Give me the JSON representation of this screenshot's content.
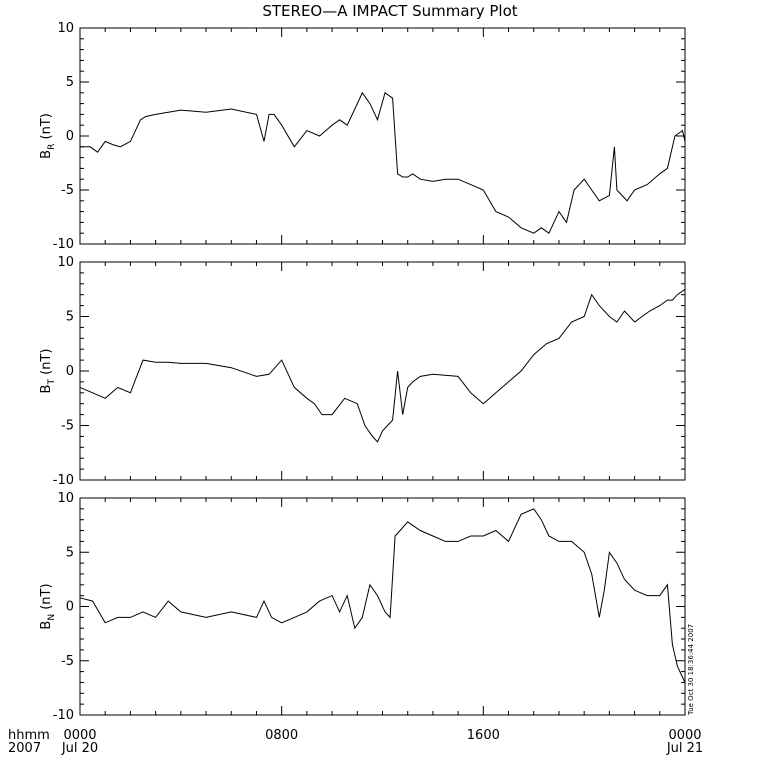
{
  "chart_data": {
    "type": "line",
    "title": "STEREO—A IMPACT Summary Plot",
    "x_axis": {
      "range_hours": [
        0,
        24
      ],
      "tick_hours": [
        0,
        8,
        16,
        24
      ],
      "tick_labels_top": [
        "0000",
        "0800",
        "1600",
        "0000"
      ],
      "tick_labels_bottom": [
        "Jul 20",
        "",
        "",
        "Jul 21"
      ],
      "row_label_top": "hhmm",
      "row_label_bottom": "2007"
    },
    "timestamp": "Tue Oct 30 18:36:44 2007",
    "panels": [
      {
        "id": "br",
        "ylabel_main": "B",
        "ylabel_sub": "R",
        "ylabel_unit": " (nT)",
        "ylim": [
          -10,
          10
        ],
        "ticks": [
          -10,
          -5,
          0,
          5,
          10
        ],
        "x": [
          0,
          0.4,
          0.7,
          1.0,
          1.3,
          1.6,
          2.0,
          2.4,
          2.6,
          3.0,
          3.5,
          4.0,
          5.0,
          6.0,
          7.0,
          7.3,
          7.5,
          7.7,
          8.0,
          8.5,
          9.0,
          9.5,
          10.0,
          10.3,
          10.6,
          10.9,
          11.2,
          11.5,
          11.8,
          12.1,
          12.4,
          12.6,
          12.8,
          13.0,
          13.2,
          13.5,
          14.0,
          14.5,
          15.0,
          15.5,
          16.0,
          16.5,
          17.0,
          17.5,
          18.0,
          18.3,
          18.6,
          19.0,
          19.3,
          19.6,
          20.0,
          20.3,
          20.6,
          21.0,
          21.2,
          21.3,
          21.5,
          21.7,
          22.0,
          22.5,
          23.0,
          23.3,
          23.6,
          23.9,
          24.0
        ],
        "y": [
          -1.0,
          -1.0,
          -1.5,
          -0.5,
          -0.8,
          -1.0,
          -0.5,
          1.5,
          1.8,
          2.0,
          2.2,
          2.4,
          2.2,
          2.5,
          2.0,
          -0.5,
          2.0,
          2.0,
          1.0,
          -1.0,
          0.5,
          0.0,
          1.0,
          1.5,
          1.0,
          2.5,
          4.0,
          3.0,
          1.5,
          4.0,
          3.5,
          -3.5,
          -3.8,
          -3.8,
          -3.5,
          -4.0,
          -4.2,
          -4.0,
          -4.0,
          -4.5,
          -5.0,
          -7.0,
          -7.5,
          -8.5,
          -9.0,
          -8.5,
          -9.0,
          -7.0,
          -8.0,
          -5.0,
          -4.0,
          -5.0,
          -6.0,
          -5.5,
          -1.0,
          -5.0,
          -5.5,
          -6.0,
          -5.0,
          -4.5,
          -3.5,
          -3.0,
          0.0,
          0.5,
          -0.5
        ]
      },
      {
        "id": "bt",
        "ylabel_main": "B",
        "ylabel_sub": "T",
        "ylabel_unit": " (nT)",
        "ylim": [
          -10,
          10
        ],
        "ticks": [
          -10,
          -5,
          0,
          5,
          10
        ],
        "x": [
          0,
          0.5,
          1.0,
          1.5,
          2.0,
          2.5,
          3.0,
          3.5,
          4.0,
          5.0,
          6.0,
          7.0,
          7.5,
          8.0,
          8.5,
          9.0,
          9.3,
          9.6,
          10.0,
          10.5,
          11.0,
          11.3,
          11.6,
          11.8,
          12.0,
          12.2,
          12.4,
          12.6,
          12.8,
          13.0,
          13.2,
          13.5,
          14.0,
          15.0,
          15.5,
          16.0,
          16.5,
          17.0,
          17.5,
          18.0,
          18.5,
          19.0,
          19.5,
          20.0,
          20.3,
          20.6,
          21.0,
          21.3,
          21.6,
          22.0,
          22.3,
          22.6,
          23.0,
          23.3,
          23.5,
          23.7,
          24.0
        ],
        "y": [
          -1.5,
          -2.0,
          -2.5,
          -1.5,
          -2.0,
          1.0,
          0.8,
          0.8,
          0.7,
          0.7,
          0.3,
          -0.5,
          -0.3,
          1.0,
          -1.5,
          -2.5,
          -3.0,
          -4.0,
          -4.0,
          -2.5,
          -3.0,
          -5.0,
          -6.0,
          -6.5,
          -5.5,
          -5.0,
          -4.5,
          0.0,
          -4.0,
          -1.5,
          -1.0,
          -0.5,
          -0.3,
          -0.5,
          -2.0,
          -3.0,
          -2.0,
          -1.0,
          0.0,
          1.5,
          2.5,
          3.0,
          4.5,
          5.0,
          7.0,
          6.0,
          5.0,
          4.5,
          5.5,
          4.5,
          5.0,
          5.5,
          6.0,
          6.5,
          6.5,
          7.0,
          7.5
        ]
      },
      {
        "id": "bn",
        "ylabel_main": "B",
        "ylabel_sub": "N",
        "ylabel_unit": " (nT)",
        "ylim": [
          -10,
          10
        ],
        "ticks": [
          -10,
          -5,
          0,
          5,
          10
        ],
        "x": [
          0,
          0.5,
          1.0,
          1.5,
          2.0,
          2.5,
          3.0,
          3.5,
          4.0,
          5.0,
          6.0,
          7.0,
          7.3,
          7.6,
          8.0,
          8.5,
          9.0,
          9.5,
          10.0,
          10.3,
          10.6,
          10.9,
          11.2,
          11.5,
          11.8,
          12.1,
          12.3,
          12.5,
          12.7,
          13.0,
          13.5,
          14.0,
          14.5,
          15.0,
          15.5,
          16.0,
          16.5,
          17.0,
          17.5,
          18.0,
          18.3,
          18.6,
          19.0,
          19.5,
          20.0,
          20.3,
          20.6,
          20.8,
          21.0,
          21.3,
          21.6,
          22.0,
          22.5,
          23.0,
          23.3,
          23.5,
          23.7,
          24.0
        ],
        "y": [
          0.8,
          0.5,
          -1.5,
          -1.0,
          -1.0,
          -0.5,
          -1.0,
          0.5,
          -0.5,
          -1.0,
          -0.5,
          -1.0,
          0.5,
          -1.0,
          -1.5,
          -1.0,
          -0.5,
          0.5,
          1.0,
          -0.5,
          1.0,
          -2.0,
          -1.0,
          2.0,
          1.0,
          -0.5,
          -1.0,
          6.5,
          7.0,
          7.8,
          7.0,
          6.5,
          6.0,
          6.0,
          6.5,
          6.5,
          7.0,
          6.0,
          8.5,
          9.0,
          8.0,
          6.5,
          6.0,
          6.0,
          5.0,
          3.0,
          -1.0,
          1.5,
          5.0,
          4.0,
          2.5,
          1.5,
          1.0,
          1.0,
          2.0,
          -3.5,
          -5.5,
          -7.0
        ]
      }
    ]
  }
}
